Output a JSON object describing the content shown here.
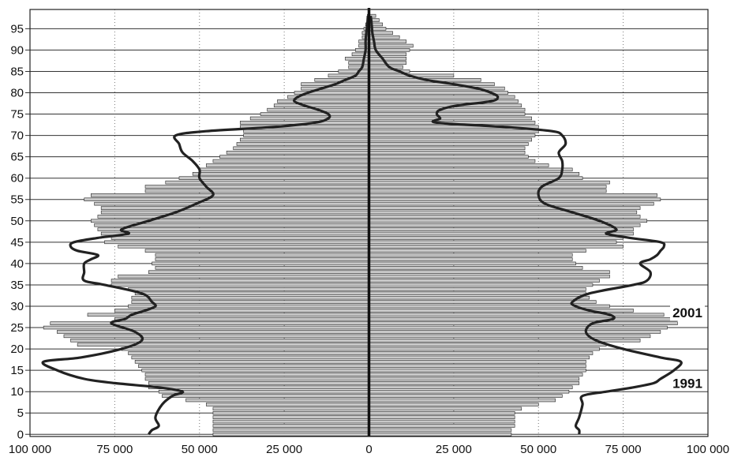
{
  "chart_data": {
    "type": "bar",
    "orientation": "population-pyramid",
    "title": "",
    "xlabel": "",
    "ylabel": "",
    "xlim": [
      -100000,
      100000
    ],
    "ylim": [
      0,
      99
    ],
    "y_ticks": [
      "0",
      "5",
      "10",
      "15",
      "20",
      "25",
      "30",
      "35",
      "40",
      "45",
      "50",
      "55",
      "60",
      "65",
      "70",
      "75",
      "80",
      "85",
      "90",
      "95"
    ],
    "x_ticks": [
      "100 000",
      "75 000",
      "50 000",
      "25 000",
      "0",
      "25 000",
      "50 000",
      "75 000",
      "100 000"
    ],
    "series_labels": [
      "2001",
      "1991"
    ],
    "grid": "horizontal lines every 5 years; dotted vertical lines every 25 000",
    "colors": {
      "bars": "#c8c8c8",
      "bar_edge": "#222222",
      "line": "#222222",
      "grid": "#333333"
    },
    "ages": [
      0,
      1,
      2,
      3,
      4,
      5,
      6,
      7,
      8,
      9,
      10,
      11,
      12,
      13,
      14,
      15,
      16,
      17,
      18,
      19,
      20,
      21,
      22,
      23,
      24,
      25,
      26,
      27,
      28,
      29,
      30,
      31,
      32,
      33,
      34,
      35,
      36,
      37,
      38,
      39,
      40,
      41,
      42,
      43,
      44,
      45,
      46,
      47,
      48,
      49,
      50,
      51,
      52,
      53,
      54,
      55,
      56,
      57,
      58,
      59,
      60,
      61,
      62,
      63,
      64,
      65,
      66,
      67,
      68,
      69,
      70,
      71,
      72,
      73,
      74,
      75,
      76,
      77,
      78,
      79,
      80,
      81,
      82,
      83,
      84,
      85,
      86,
      87,
      88,
      89,
      90,
      91,
      92,
      93,
      94,
      95,
      96,
      97,
      98
    ],
    "series": [
      {
        "name": "2001",
        "kind": "bars",
        "left": [
          46000,
          46000,
          46000,
          46000,
          46000,
          46000,
          46000,
          48000,
          54000,
          61000,
          62000,
          65000,
          65000,
          66000,
          66000,
          67000,
          68000,
          69000,
          70000,
          71000,
          73000,
          86000,
          88000,
          90000,
          92000,
          96000,
          94000,
          75000,
          83000,
          75000,
          71000,
          70000,
          70000,
          69000,
          71000,
          76000,
          76000,
          74000,
          65000,
          63000,
          64000,
          63000,
          63000,
          66000,
          74000,
          78000,
          76000,
          79000,
          80000,
          81000,
          82000,
          80000,
          79000,
          79000,
          81000,
          84000,
          82000,
          66000,
          66000,
          60000,
          56000,
          52000,
          50000,
          48000,
          46000,
          44000,
          42000,
          40000,
          39000,
          38000,
          37000,
          37000,
          38000,
          38000,
          35000,
          32000,
          30000,
          28000,
          27000,
          24000,
          22000,
          20000,
          20000,
          16000,
          12000,
          9000,
          6000,
          6000,
          7000,
          5000,
          4000,
          3000,
          3000,
          2000,
          2000,
          1500,
          1000,
          500,
          500
        ],
        "right": [
          42000,
          42000,
          43000,
          43000,
          43000,
          43000,
          45000,
          50000,
          55000,
          57000,
          59000,
          60000,
          62000,
          62000,
          63000,
          64000,
          64000,
          64000,
          65000,
          66000,
          68000,
          70000,
          80000,
          83000,
          86000,
          88000,
          91000,
          91000,
          87000,
          78000,
          71000,
          67000,
          65000,
          64000,
          64000,
          66000,
          68000,
          71000,
          71000,
          63000,
          61000,
          60000,
          60000,
          64000,
          75000,
          73000,
          75000,
          78000,
          78000,
          80000,
          82000,
          80000,
          79000,
          80000,
          84000,
          86000,
          85000,
          70000,
          70000,
          71000,
          63000,
          62000,
          60000,
          53000,
          49000,
          47000,
          46000,
          46000,
          47000,
          48000,
          49000,
          50000,
          50000,
          49000,
          48000,
          46000,
          46000,
          45000,
          44000,
          43000,
          41000,
          40000,
          37000,
          33000,
          25000,
          12000,
          10000,
          11000,
          11000,
          11000,
          12000,
          13000,
          11000,
          9000,
          7000,
          5000,
          4000,
          3000,
          2000
        ]
      },
      {
        "name": "1991",
        "kind": "line",
        "ages": [
          0,
          1,
          2,
          4,
          7,
          9,
          10,
          11,
          12,
          13,
          15,
          17,
          18,
          20,
          22,
          24,
          26,
          27,
          28,
          29,
          30,
          31,
          33,
          35,
          36,
          38,
          40,
          41,
          42,
          43,
          44,
          45,
          46,
          47,
          48,
          50,
          52,
          54,
          56,
          58,
          60,
          62,
          64,
          66,
          68,
          70,
          71,
          72,
          73,
          74,
          75,
          76,
          77,
          78,
          79,
          80,
          81,
          82,
          83,
          84,
          85,
          86,
          88,
          90,
          92,
          94,
          96,
          98
        ],
        "left": [
          65000,
          64000,
          62000,
          63000,
          61000,
          58000,
          55000,
          62000,
          75000,
          84000,
          92000,
          96000,
          85000,
          73000,
          67000,
          69000,
          76000,
          72000,
          70000,
          66000,
          63000,
          64000,
          67000,
          78000,
          84000,
          84000,
          84000,
          82000,
          80000,
          86000,
          88000,
          87000,
          80000,
          71000,
          73000,
          65000,
          57000,
          51000,
          46000,
          48000,
          50000,
          50000,
          52000,
          55000,
          56000,
          57000,
          48000,
          28000,
          16000,
          12000,
          12000,
          15000,
          19000,
          22000,
          21000,
          18000,
          14000,
          10000,
          7000,
          4000,
          3000,
          2000,
          1500,
          1000,
          1000,
          800,
          500,
          300
        ],
        "right": [
          62000,
          62000,
          61000,
          62000,
          63000,
          63000,
          70000,
          78000,
          84000,
          86000,
          90000,
          92000,
          86000,
          75000,
          67000,
          64000,
          66000,
          72000,
          71000,
          65000,
          61000,
          60000,
          65000,
          78000,
          82000,
          83000,
          80000,
          83000,
          85000,
          86000,
          87000,
          86000,
          77000,
          70000,
          73000,
          68000,
          60000,
          52000,
          50000,
          51000,
          56000,
          57000,
          57000,
          56000,
          58000,
          57000,
          54000,
          40000,
          20000,
          21000,
          20000,
          21000,
          26000,
          36000,
          38000,
          36000,
          32000,
          25000,
          17000,
          12000,
          9000,
          6000,
          4000,
          2000,
          1500,
          1000,
          800,
          500
        ]
      }
    ]
  }
}
